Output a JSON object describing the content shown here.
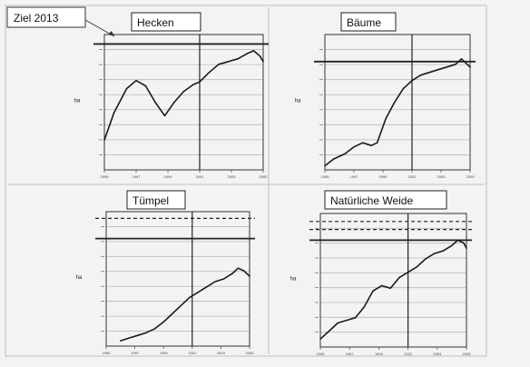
{
  "annotation": {
    "text": "Ziel 2013"
  },
  "charts": [
    {
      "title": "Hecken",
      "target_lines": [
        {
          "label": "",
          "value": 0.93,
          "style": "solid"
        }
      ],
      "x_ticks": [
        "1995",
        "1997",
        "1999",
        "2001",
        "2003",
        "2005"
      ],
      "y_ticks": [
        "",
        "",
        "",
        "",
        "",
        "",
        "",
        ""
      ],
      "y_label": "ha",
      "ylim": [
        0,
        1
      ],
      "divider_x": 3,
      "series": [
        {
          "x": [
            0,
            0.3,
            0.7,
            1.0,
            1.3,
            1.6,
            1.9,
            2.2,
            2.5,
            2.8,
            3.0,
            3.3,
            3.6,
            3.9,
            4.2,
            4.5,
            4.7,
            4.9,
            5.0
          ],
          "y": [
            0.22,
            0.42,
            0.6,
            0.66,
            0.62,
            0.5,
            0.4,
            0.5,
            0.58,
            0.63,
            0.65,
            0.72,
            0.78,
            0.8,
            0.82,
            0.86,
            0.88,
            0.84,
            0.8
          ]
        }
      ]
    },
    {
      "title": "Bäume",
      "target_lines": [
        {
          "label": "",
          "value": 0.8,
          "style": "solid"
        }
      ],
      "x_ticks": [
        "1995",
        "1997",
        "1999",
        "2001",
        "2003",
        "2005"
      ],
      "y_ticks": [
        "",
        "",
        "",
        "",
        "",
        "",
        "",
        ""
      ],
      "y_label": "ha",
      "ylim": [
        0,
        1
      ],
      "divider_x": 3,
      "series": [
        {
          "x": [
            0,
            0.3,
            0.7,
            1.0,
            1.3,
            1.6,
            1.8,
            2.1,
            2.4,
            2.7,
            3.0,
            3.3,
            3.6,
            3.9,
            4.2,
            4.5,
            4.7,
            4.9,
            5.0
          ],
          "y": [
            0.03,
            0.08,
            0.12,
            0.17,
            0.2,
            0.18,
            0.2,
            0.38,
            0.5,
            0.6,
            0.66,
            0.7,
            0.72,
            0.74,
            0.76,
            0.78,
            0.82,
            0.78,
            0.76
          ]
        }
      ]
    },
    {
      "title": "Tümpel",
      "target_lines": [
        {
          "label": "",
          "value": 0.95,
          "style": "dashed"
        },
        {
          "label": "",
          "value": 0.8,
          "style": "solid"
        }
      ],
      "x_ticks": [
        "1995",
        "1997",
        "1999",
        "2001",
        "2003",
        "2005"
      ],
      "y_ticks": [
        "",
        "",
        "",
        "",
        "",
        "",
        "",
        ""
      ],
      "y_label": "ha",
      "ylim": [
        0,
        1
      ],
      "divider_x": 3,
      "series": [
        {
          "x": [
            0.5,
            0.8,
            1.1,
            1.4,
            1.7,
            2.0,
            2.3,
            2.6,
            2.9,
            3.2,
            3.5,
            3.8,
            4.1,
            4.4,
            4.6,
            4.8,
            5.0
          ],
          "y": [
            0.04,
            0.06,
            0.08,
            0.1,
            0.13,
            0.18,
            0.24,
            0.3,
            0.36,
            0.4,
            0.44,
            0.48,
            0.5,
            0.54,
            0.58,
            0.56,
            0.52
          ]
        }
      ]
    },
    {
      "title": "Natürliche Weide",
      "target_lines": [
        {
          "label": "",
          "value": 0.94,
          "style": "dashed"
        },
        {
          "label": "",
          "value": 0.88,
          "style": "dashed"
        },
        {
          "label": "",
          "value": 0.8,
          "style": "solid"
        }
      ],
      "x_ticks": [
        "1995",
        "1997",
        "1999",
        "2001",
        "2003",
        "2005"
      ],
      "y_ticks": [
        "",
        "",
        "",
        "",
        "",
        "",
        "",
        ""
      ],
      "y_label": "ha",
      "ylim": [
        0,
        1
      ],
      "divider_x": 3,
      "series": [
        {
          "x": [
            0,
            0.3,
            0.6,
            0.9,
            1.2,
            1.5,
            1.8,
            2.1,
            2.4,
            2.7,
            3.0,
            3.3,
            3.6,
            3.9,
            4.2,
            4.5,
            4.7,
            4.9,
            5.0
          ],
          "y": [
            0.06,
            0.12,
            0.18,
            0.2,
            0.22,
            0.3,
            0.42,
            0.46,
            0.44,
            0.52,
            0.56,
            0.6,
            0.66,
            0.7,
            0.72,
            0.76,
            0.8,
            0.78,
            0.74
          ]
        }
      ]
    }
  ],
  "chart_data": [
    {
      "type": "line",
      "title": "Hecken",
      "x": [
        "1995",
        "1997",
        "1999",
        "2001",
        "2003",
        "2005"
      ],
      "ylim": [
        0,
        1
      ]
    },
    {
      "type": "line",
      "title": "Bäume",
      "x": [
        "1995",
        "1997",
        "1999",
        "2001",
        "2003",
        "2005"
      ],
      "ylim": [
        0,
        1
      ]
    },
    {
      "type": "line",
      "title": "Tümpel",
      "x": [
        "1995",
        "1997",
        "1999",
        "2001",
        "2003",
        "2005"
      ],
      "ylim": [
        0,
        1
      ]
    },
    {
      "type": "line",
      "title": "Natürliche Weide",
      "x": [
        "1995",
        "1997",
        "1999",
        "2001",
        "2003",
        "2005"
      ],
      "ylim": [
        0,
        1
      ]
    }
  ]
}
